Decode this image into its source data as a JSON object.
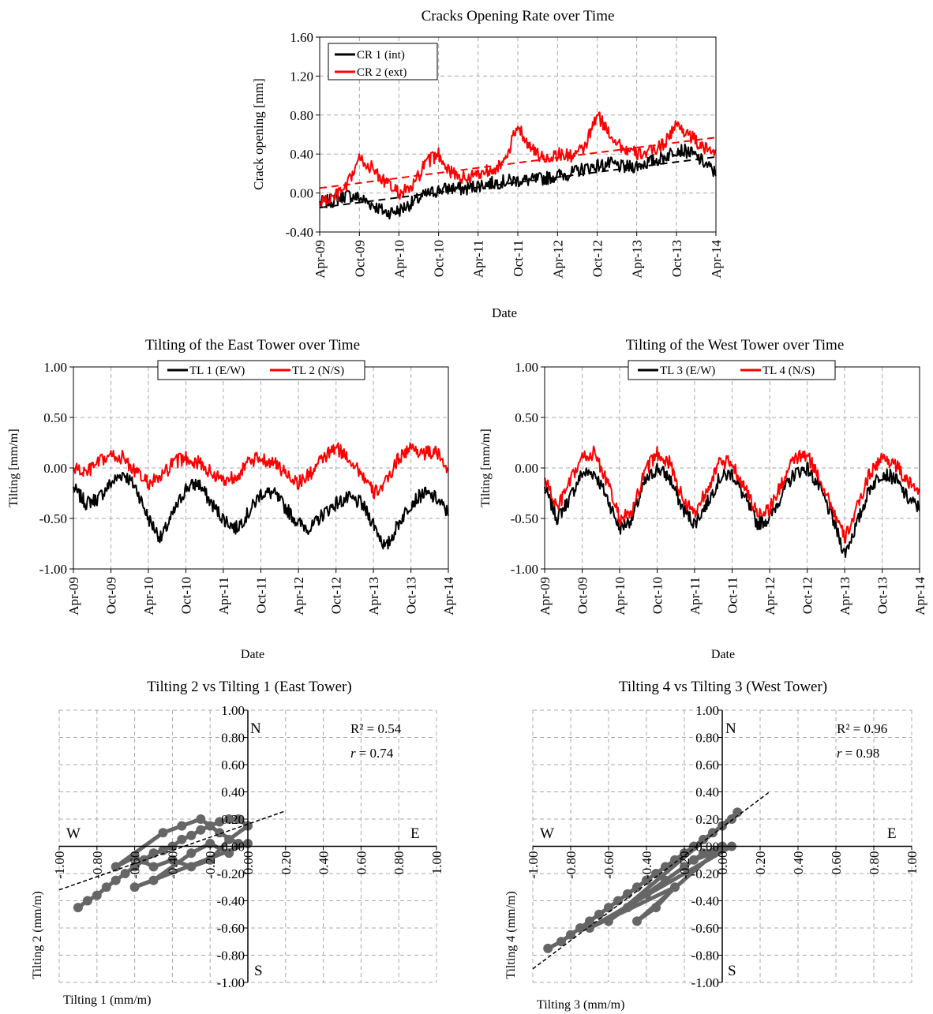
{
  "chart_data": [
    {
      "id": "crack",
      "type": "line",
      "title": "Cracks Opening Rate over Time",
      "xlabel": "Date",
      "ylabel": "Crack opening [mm]",
      "xticks": [
        "Apr-09",
        "Oct-09",
        "Apr-10",
        "Oct-10",
        "Apr-11",
        "Oct-11",
        "Apr-12",
        "Oct-12",
        "Apr-13",
        "Oct-13",
        "Apr-14"
      ],
      "xlim": [
        "2009-04-01",
        "2014-04-01"
      ],
      "ylim": [
        -0.4,
        1.6
      ],
      "yticks": [
        "-0.40",
        "0.00",
        "0.40",
        "0.80",
        "1.20",
        "1.60"
      ],
      "grid": true,
      "legend": "top-left",
      "series": [
        {
          "name": "CR 1 (int)",
          "color": "#000000",
          "x": [
            "2009-04-01",
            "2009-06-01",
            "2009-08-01",
            "2009-10-01",
            "2009-12-01",
            "2010-02-01",
            "2010-04-01",
            "2010-06-01",
            "2010-08-01",
            "2010-10-01",
            "2010-12-01",
            "2011-02-01",
            "2011-04-01",
            "2011-06-01",
            "2011-08-01",
            "2011-10-01",
            "2011-12-01",
            "2012-02-01",
            "2012-04-01",
            "2012-06-01",
            "2012-08-01",
            "2012-10-01",
            "2012-12-01",
            "2013-02-01",
            "2013-04-01",
            "2013-06-01",
            "2013-08-01",
            "2013-10-01",
            "2013-12-01",
            "2014-02-01",
            "2014-04-01"
          ],
          "y": [
            -0.1,
            -0.08,
            -0.02,
            -0.05,
            -0.12,
            -0.2,
            -0.18,
            -0.1,
            -0.02,
            0.03,
            0.05,
            0.04,
            0.08,
            0.1,
            0.12,
            0.13,
            0.13,
            0.15,
            0.18,
            0.2,
            0.25,
            0.28,
            0.3,
            0.26,
            0.28,
            0.32,
            0.36,
            0.45,
            0.42,
            0.32,
            0.2
          ]
        },
        {
          "name": "CR 2 (ext)",
          "color": "#ff0000",
          "x": [
            "2009-04-01",
            "2009-06-01",
            "2009-08-01",
            "2009-10-01",
            "2009-12-01",
            "2010-02-01",
            "2010-04-01",
            "2010-06-01",
            "2010-08-01",
            "2010-10-01",
            "2010-12-01",
            "2011-02-01",
            "2011-04-01",
            "2011-06-01",
            "2011-08-01",
            "2011-10-01",
            "2011-12-01",
            "2012-02-01",
            "2012-04-01",
            "2012-06-01",
            "2012-08-01",
            "2012-10-01",
            "2012-12-01",
            "2013-02-01",
            "2013-04-01",
            "2013-06-01",
            "2013-08-01",
            "2013-10-01",
            "2013-12-01",
            "2014-02-01",
            "2014-04-01"
          ],
          "y": [
            -0.1,
            -0.05,
            0.05,
            0.35,
            0.25,
            0.1,
            0.0,
            0.05,
            0.3,
            0.4,
            0.2,
            0.15,
            0.2,
            0.25,
            0.3,
            0.7,
            0.45,
            0.35,
            0.4,
            0.38,
            0.45,
            0.8,
            0.6,
            0.45,
            0.4,
            0.42,
            0.5,
            0.7,
            0.6,
            0.45,
            0.45
          ]
        },
        {
          "name": "",
          "color": "#000000",
          "dashed": true,
          "x": [
            "2009-04-01",
            "2014-04-01"
          ],
          "y": [
            -0.15,
            0.37
          ]
        },
        {
          "name": "",
          "color": "#ff0000",
          "dashed": true,
          "x": [
            "2009-04-01",
            "2014-04-01"
          ],
          "y": [
            0.05,
            0.57
          ]
        }
      ]
    },
    {
      "id": "east",
      "type": "line",
      "title": "Tilting of the East Tower over Time",
      "xlabel": "Date",
      "ylabel": "Tilting [mm/m]",
      "xticks": [
        "Apr-09",
        "Oct-09",
        "Apr-10",
        "Oct-10",
        "Apr-11",
        "Oct-11",
        "Apr-12",
        "Oct-12",
        "Apr-13",
        "Oct-13",
        "Apr-14"
      ],
      "xlim": [
        "2009-04-01",
        "2014-04-01"
      ],
      "ylim": [
        -1.0,
        1.0
      ],
      "yticks": [
        "-1.00",
        "-0.50",
        "0.00",
        "0.50",
        "1.00"
      ],
      "grid": true,
      "legend": "top-center",
      "series": [
        {
          "name": "TL 1 (E/W)",
          "color": "#000000",
          "x": [
            "2009-04-01",
            "2009-06-01",
            "2009-08-01",
            "2009-10-01",
            "2009-12-01",
            "2010-02-01",
            "2010-04-01",
            "2010-06-01",
            "2010-08-01",
            "2010-10-01",
            "2010-12-01",
            "2011-02-01",
            "2011-04-01",
            "2011-06-01",
            "2011-08-01",
            "2011-10-01",
            "2011-12-01",
            "2012-02-01",
            "2012-04-01",
            "2012-06-01",
            "2012-08-01",
            "2012-10-01",
            "2012-12-01",
            "2013-02-01",
            "2013-04-01",
            "2013-06-01",
            "2013-08-01",
            "2013-10-01",
            "2013-12-01",
            "2014-02-01",
            "2014-04-01"
          ],
          "y": [
            -0.2,
            -0.35,
            -0.3,
            -0.15,
            -0.05,
            -0.2,
            -0.5,
            -0.7,
            -0.45,
            -0.2,
            -0.15,
            -0.35,
            -0.5,
            -0.6,
            -0.45,
            -0.25,
            -0.25,
            -0.4,
            -0.55,
            -0.6,
            -0.45,
            -0.35,
            -0.3,
            -0.35,
            -0.55,
            -0.8,
            -0.55,
            -0.35,
            -0.25,
            -0.3,
            -0.45
          ]
        },
        {
          "name": "TL 2 (N/S)",
          "color": "#ff0000",
          "x": [
            "2009-04-01",
            "2009-06-01",
            "2009-08-01",
            "2009-10-01",
            "2009-12-01",
            "2010-02-01",
            "2010-04-01",
            "2010-06-01",
            "2010-08-01",
            "2010-10-01",
            "2010-12-01",
            "2011-02-01",
            "2011-04-01",
            "2011-06-01",
            "2011-08-01",
            "2011-10-01",
            "2011-12-01",
            "2012-02-01",
            "2012-04-01",
            "2012-06-01",
            "2012-08-01",
            "2012-10-01",
            "2012-12-01",
            "2013-02-01",
            "2013-04-01",
            "2013-06-01",
            "2013-08-01",
            "2013-10-01",
            "2013-12-01",
            "2014-02-01",
            "2014-04-01"
          ],
          "y": [
            0.0,
            -0.05,
            0.05,
            0.12,
            0.1,
            -0.05,
            -0.15,
            -0.1,
            0.05,
            0.1,
            0.05,
            -0.05,
            -0.12,
            -0.08,
            0.05,
            0.1,
            0.05,
            -0.05,
            -0.15,
            -0.05,
            0.1,
            0.2,
            0.1,
            -0.05,
            -0.25,
            -0.15,
            0.1,
            0.2,
            0.15,
            0.15,
            0.0
          ]
        }
      ]
    },
    {
      "id": "west",
      "type": "line",
      "title": "Tilting of the West Tower over Time",
      "xlabel": "Date",
      "ylabel": "Tilting [mm/m]",
      "xticks": [
        "Apr-09",
        "Oct-09",
        "Apr-10",
        "Oct-10",
        "Apr-11",
        "Oct-11",
        "Apr-12",
        "Oct-12",
        "Apr-13",
        "Oct-13",
        "Apr-14"
      ],
      "xlim": [
        "2009-04-01",
        "2014-04-01"
      ],
      "ylim": [
        -1.0,
        1.0
      ],
      "yticks": [
        "-1.00",
        "-0.50",
        "0.00",
        "0.50",
        "1.00"
      ],
      "grid": true,
      "legend": "top-center",
      "series": [
        {
          "name": "TL 3 (E/W)",
          "color": "#000000",
          "x": [
            "2009-04-01",
            "2009-06-01",
            "2009-08-01",
            "2009-10-01",
            "2009-12-01",
            "2010-02-01",
            "2010-04-01",
            "2010-06-01",
            "2010-08-01",
            "2010-10-01",
            "2010-12-01",
            "2011-02-01",
            "2011-04-01",
            "2011-06-01",
            "2011-08-01",
            "2011-10-01",
            "2011-12-01",
            "2012-02-01",
            "2012-04-01",
            "2012-06-01",
            "2012-08-01",
            "2012-10-01",
            "2012-12-01",
            "2013-02-01",
            "2013-04-01",
            "2013-06-01",
            "2013-08-01",
            "2013-10-01",
            "2013-12-01",
            "2014-02-01",
            "2014-04-01"
          ],
          "y": [
            -0.2,
            -0.5,
            -0.3,
            -0.05,
            -0.05,
            -0.3,
            -0.6,
            -0.5,
            -0.15,
            0.0,
            -0.1,
            -0.4,
            -0.55,
            -0.35,
            -0.1,
            -0.05,
            -0.3,
            -0.55,
            -0.5,
            -0.25,
            -0.05,
            0.0,
            -0.2,
            -0.5,
            -0.85,
            -0.55,
            -0.2,
            -0.05,
            -0.1,
            -0.3,
            -0.4
          ]
        },
        {
          "name": "TL 4 (N/S)",
          "color": "#ff0000",
          "x": [
            "2009-04-01",
            "2009-06-01",
            "2009-08-01",
            "2009-10-01",
            "2009-12-01",
            "2010-02-01",
            "2010-04-01",
            "2010-06-01",
            "2010-08-01",
            "2010-10-01",
            "2010-12-01",
            "2011-02-01",
            "2011-04-01",
            "2011-06-01",
            "2011-08-01",
            "2011-10-01",
            "2011-12-01",
            "2012-02-01",
            "2012-04-01",
            "2012-06-01",
            "2012-08-01",
            "2012-10-01",
            "2012-12-01",
            "2013-02-01",
            "2013-04-01",
            "2013-06-01",
            "2013-08-01",
            "2013-10-01",
            "2013-12-01",
            "2014-02-01",
            "2014-04-01"
          ],
          "y": [
            -0.1,
            -0.4,
            -0.15,
            0.1,
            0.15,
            -0.15,
            -0.5,
            -0.45,
            -0.05,
            0.15,
            0.05,
            -0.3,
            -0.45,
            -0.2,
            0.05,
            0.05,
            -0.2,
            -0.45,
            -0.4,
            -0.15,
            0.1,
            0.12,
            -0.1,
            -0.4,
            -0.7,
            -0.4,
            -0.05,
            0.1,
            0.05,
            -0.15,
            -0.2
          ]
        }
      ]
    },
    {
      "id": "eastScatter",
      "type": "scatter",
      "title": "Tilting 2 vs Tilting 1 (East Tower)",
      "xlabel": "Tilting 1 (mm/m)",
      "ylabel": "Tilting 2 (mm/m)",
      "xlim": [
        -1.0,
        1.0
      ],
      "ylim": [
        -1.0,
        1.0
      ],
      "xticks": [
        "-1.00",
        "-0.80",
        "-0.60",
        "-0.40",
        "-0.20",
        "0.00",
        "0.20",
        "0.40",
        "0.60",
        "0.80",
        "1.00"
      ],
      "yticks": [
        "-1.00",
        "-0.80",
        "-0.60",
        "-0.40",
        "-0.20",
        "0.00",
        "0.20",
        "0.40",
        "0.60",
        "0.80",
        "1.00"
      ],
      "grid": true,
      "quadrant_labels": {
        "north": "N",
        "south": "S",
        "west": "W",
        "east": "E"
      },
      "stats": {
        "r2_label": "R² = 0.54",
        "r_symbol": "r",
        "r_value": "= 0.74"
      },
      "point_color": "#666666",
      "points": [
        [
          -0.9,
          -0.45
        ],
        [
          -0.85,
          -0.4
        ],
        [
          -0.8,
          -0.36
        ],
        [
          -0.75,
          -0.3
        ],
        [
          -0.7,
          -0.25
        ],
        [
          -0.65,
          -0.2
        ],
        [
          -0.6,
          -0.15
        ],
        [
          -0.55,
          -0.1
        ],
        [
          -0.5,
          -0.05
        ],
        [
          -0.45,
          -0.03
        ],
        [
          -0.4,
          0.0
        ],
        [
          -0.35,
          0.05
        ],
        [
          -0.3,
          0.08
        ],
        [
          -0.25,
          0.12
        ],
        [
          -0.2,
          0.15
        ],
        [
          -0.15,
          0.18
        ],
        [
          -0.1,
          0.2
        ],
        [
          -0.05,
          0.2
        ],
        [
          0.0,
          0.15
        ],
        [
          -0.1,
          0.05
        ],
        [
          -0.2,
          -0.1
        ],
        [
          -0.3,
          -0.15
        ],
        [
          -0.4,
          -0.1
        ],
        [
          -0.5,
          -0.15
        ],
        [
          -0.6,
          -0.08
        ],
        [
          -0.7,
          -0.15
        ],
        [
          -0.45,
          0.1
        ],
        [
          -0.35,
          0.15
        ],
        [
          -0.25,
          0.2
        ],
        [
          -0.15,
          0.1
        ],
        [
          -0.05,
          0.02
        ],
        [
          0.0,
          0.02
        ],
        [
          -0.6,
          -0.3
        ],
        [
          -0.5,
          -0.25
        ],
        [
          -0.3,
          -0.05
        ],
        [
          -0.2,
          0.02
        ],
        [
          -0.1,
          -0.05
        ]
      ],
      "trend": {
        "x": [
          -1.0,
          0.2
        ],
        "y": [
          -0.32,
          0.26
        ]
      }
    },
    {
      "id": "westScatter",
      "type": "scatter",
      "title": "Tilting 4 vs Tilting 3 (West Tower)",
      "xlabel": "Tilting 3 (mm/m)",
      "ylabel": "Tilting 4 (mm/m)",
      "xlim": [
        -1.0,
        1.0
      ],
      "ylim": [
        -1.0,
        1.0
      ],
      "xticks": [
        "-1.00",
        "-0.80",
        "-0.60",
        "-0.40",
        "-0.20",
        "0.00",
        "0.20",
        "0.40",
        "0.60",
        "0.80",
        "1.00"
      ],
      "yticks": [
        "-1.00",
        "-0.80",
        "-0.60",
        "-0.40",
        "-0.20",
        "0.00",
        "0.20",
        "0.40",
        "0.60",
        "0.80",
        "1.00"
      ],
      "grid": true,
      "quadrant_labels": {
        "north": "N",
        "south": "S",
        "west": "W",
        "east": "E"
      },
      "stats": {
        "r2_label": "R² = 0.96",
        "r_symbol": "r",
        "r_value": "= 0.98"
      },
      "point_color": "#666666",
      "points": [
        [
          -0.92,
          -0.75
        ],
        [
          -0.85,
          -0.7
        ],
        [
          -0.8,
          -0.65
        ],
        [
          -0.75,
          -0.6
        ],
        [
          -0.7,
          -0.55
        ],
        [
          -0.65,
          -0.5
        ],
        [
          -0.6,
          -0.45
        ],
        [
          -0.55,
          -0.4
        ],
        [
          -0.5,
          -0.35
        ],
        [
          -0.45,
          -0.3
        ],
        [
          -0.4,
          -0.25
        ],
        [
          -0.35,
          -0.2
        ],
        [
          -0.3,
          -0.15
        ],
        [
          -0.25,
          -0.1
        ],
        [
          -0.2,
          -0.05
        ],
        [
          -0.15,
          0.0
        ],
        [
          -0.1,
          0.05
        ],
        [
          -0.05,
          0.1
        ],
        [
          0.0,
          0.15
        ],
        [
          0.05,
          0.2
        ],
        [
          0.08,
          0.25
        ],
        [
          -0.6,
          -0.55
        ],
        [
          -0.5,
          -0.45
        ],
        [
          -0.4,
          -0.35
        ],
        [
          -0.3,
          -0.25
        ],
        [
          -0.2,
          -0.15
        ],
        [
          -0.1,
          -0.05
        ],
        [
          0.0,
          0.0
        ],
        [
          -0.45,
          -0.55
        ],
        [
          -0.35,
          -0.45
        ],
        [
          -0.25,
          -0.3
        ],
        [
          -0.7,
          -0.6
        ],
        [
          0.05,
          0.0
        ],
        [
          -0.15,
          -0.1
        ]
      ],
      "trend": {
        "x": [
          -1.0,
          0.25
        ],
        "y": [
          -0.9,
          0.4
        ]
      }
    }
  ]
}
